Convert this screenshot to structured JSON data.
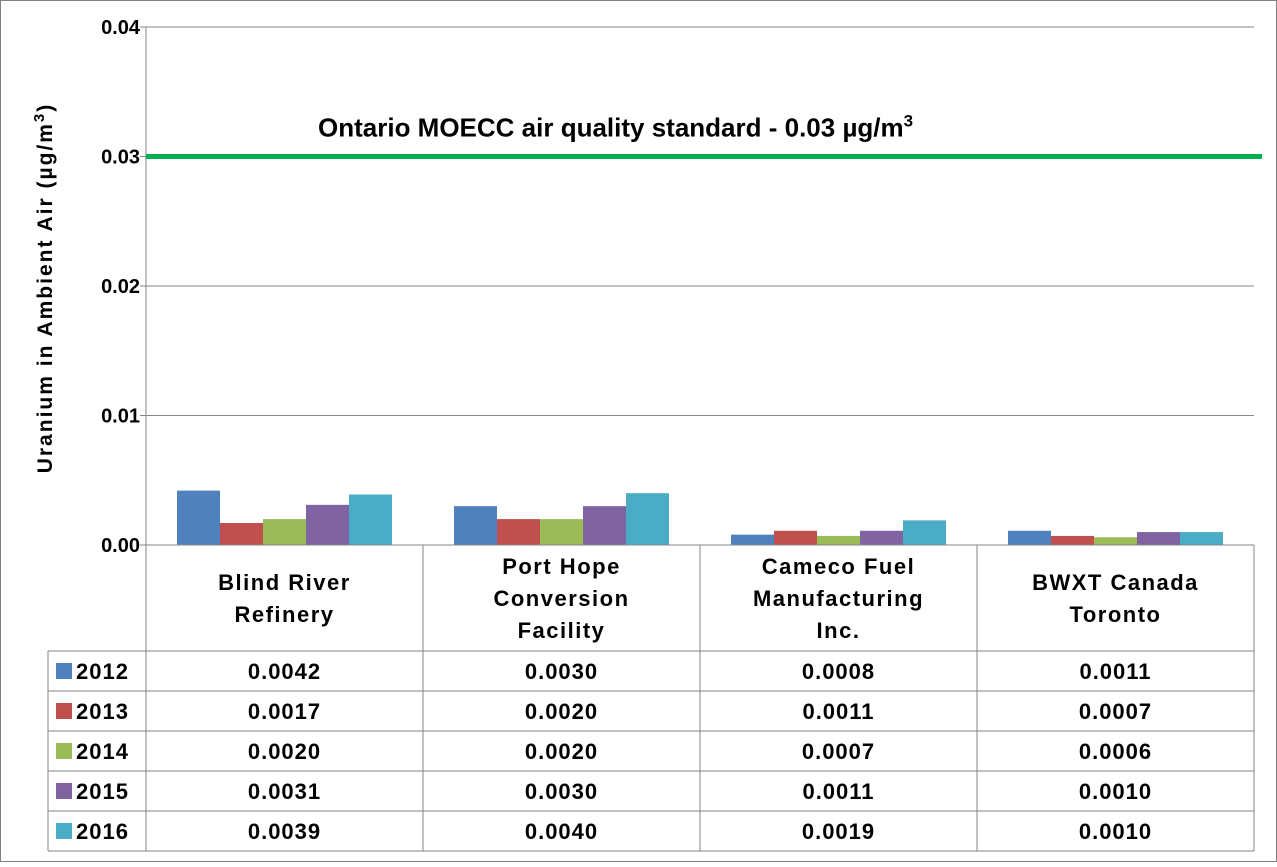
{
  "chart_data": {
    "type": "bar",
    "ylabel": "Uranium in Ambient Air (µg/m³)",
    "ylabel_main": "Uranium in Ambient Air (µg/m",
    "ylabel_sup": "3",
    "ylabel_close": ")",
    "ylim": [
      0,
      0.04
    ],
    "y_ticks": [
      "0.00",
      "0.01",
      "0.02",
      "0.03",
      "0.04"
    ],
    "y_tick_values": [
      0,
      0.01,
      0.02,
      0.03,
      0.04
    ],
    "grid": true,
    "categories": [
      [
        "Blind River",
        "Refinery"
      ],
      [
        "Port Hope",
        "Conversion",
        "Facility"
      ],
      [
        "Cameco Fuel",
        "Manufacturing",
        "Inc."
      ],
      [
        "BWXT Canada",
        "Toronto"
      ]
    ],
    "series": [
      {
        "name": "2012",
        "color": "#4F81BD",
        "values": [
          0.0042,
          0.003,
          0.0008,
          0.0011
        ],
        "labels": [
          "0.0042",
          "0.0030",
          "0.0008",
          "0.0011"
        ]
      },
      {
        "name": "2013",
        "color": "#C0504D",
        "values": [
          0.0017,
          0.002,
          0.0011,
          0.0007
        ],
        "labels": [
          "0.0017",
          "0.0020",
          "0.0011",
          "0.0007"
        ]
      },
      {
        "name": "2014",
        "color": "#9BBB59",
        "values": [
          0.002,
          0.002,
          0.0007,
          0.0006
        ],
        "labels": [
          "0.0020",
          "0.0020",
          "0.0007",
          "0.0006"
        ]
      },
      {
        "name": "2015",
        "color": "#8064A2",
        "values": [
          0.0031,
          0.003,
          0.0011,
          0.001
        ],
        "labels": [
          "0.0031",
          "0.0030",
          "0.0011",
          "0.0010"
        ]
      },
      {
        "name": "2016",
        "color": "#4BACC6",
        "values": [
          0.0039,
          0.004,
          0.0019,
          0.001
        ],
        "labels": [
          "0.0039",
          "0.0040",
          "0.0019",
          "0.0010"
        ]
      }
    ],
    "reference_line": {
      "value": 0.03,
      "color": "#00B050",
      "label": "Ontario MOECC air quality standard - 0.03 µg/m³",
      "label_main": "Ontario MOECC air quality standard - 0.03 µg/m",
      "label_sup": "3"
    },
    "legend": "data-table"
  }
}
